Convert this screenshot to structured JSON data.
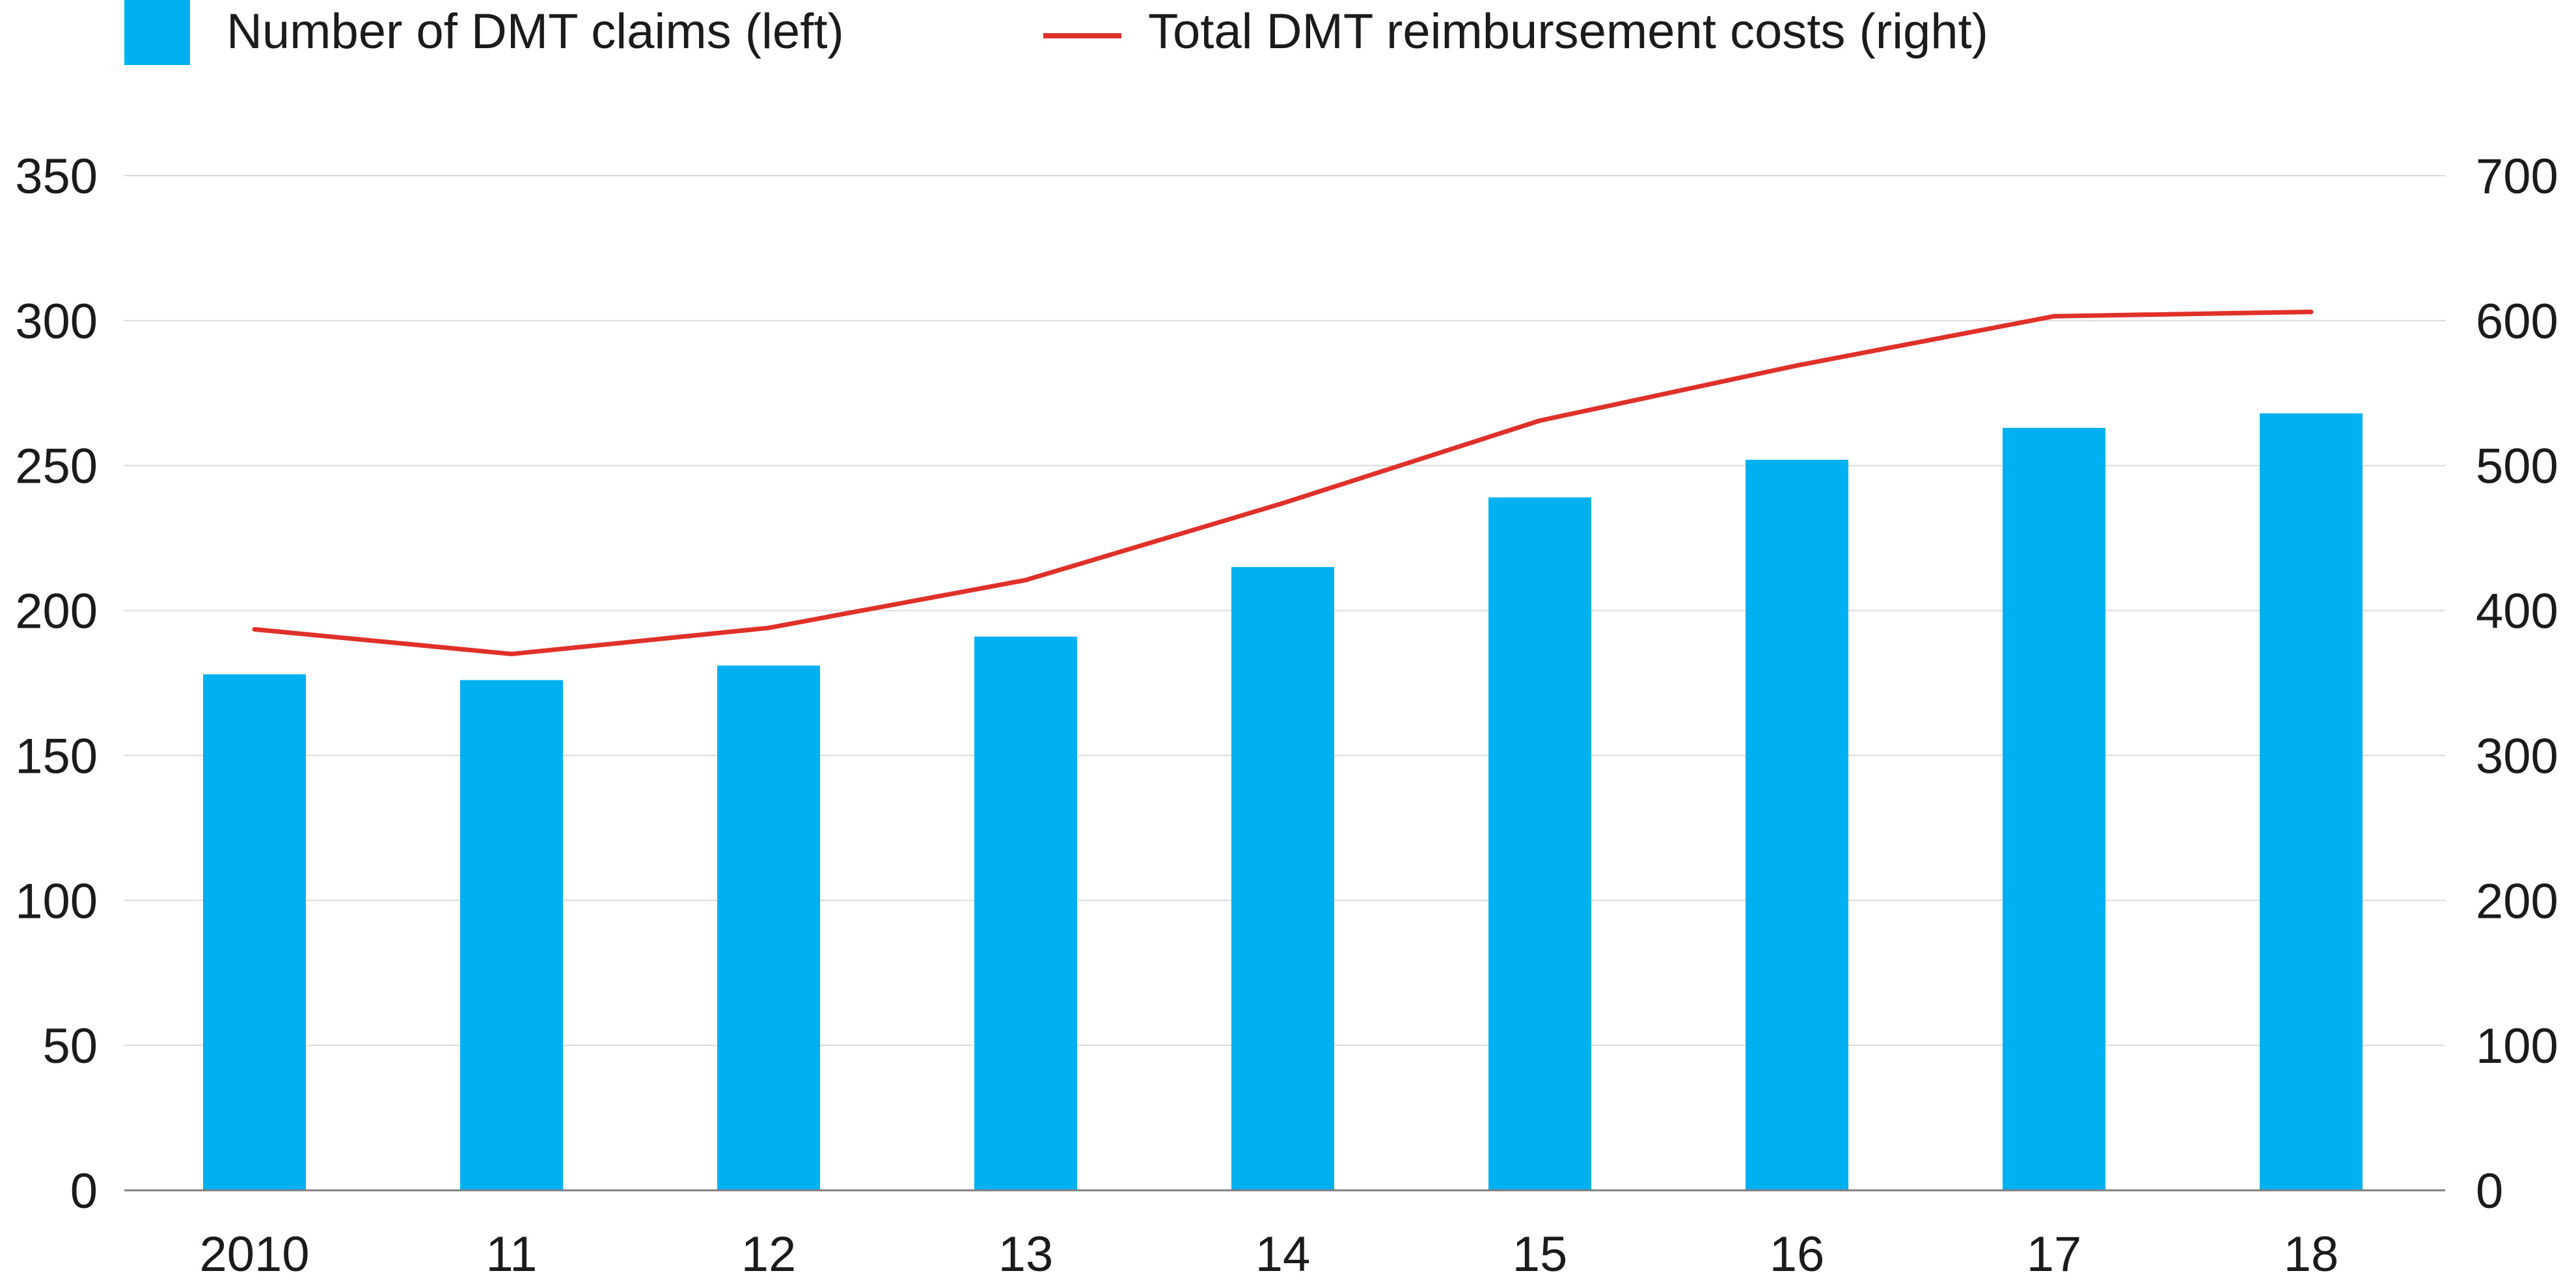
{
  "chart_data": {
    "type": "bar",
    "categories": [
      "2010",
      "11",
      "12",
      "13",
      "14",
      "15",
      "16",
      "17",
      "18"
    ],
    "series": [
      {
        "name": "Number of DMT claims (left)",
        "type": "bar",
        "axis": "left",
        "color": "#00B0F0",
        "values": [
          178,
          176,
          181,
          191,
          215,
          239,
          252,
          263,
          268
        ]
      },
      {
        "name": "Total DMT reimbursement costs (right)",
        "type": "line",
        "axis": "right",
        "color": "#E0302A",
        "values": [
          387,
          370,
          388,
          421,
          474,
          531,
          569,
          603,
          606
        ]
      }
    ],
    "y_left": {
      "ylim": [
        0,
        350
      ],
      "ticks": [
        "0",
        "50",
        "100",
        "150",
        "200",
        "250",
        "300",
        "350"
      ]
    },
    "y_right": {
      "ylim": [
        0,
        700
      ],
      "ticks": [
        "0",
        "100",
        "200",
        "300",
        "400",
        "500",
        "600",
        "700"
      ]
    },
    "grid": true,
    "legend_position": "top-left",
    "colors": {
      "grid": "#DADADA",
      "axis": "#7F7F7F",
      "text": "#1B1B1B"
    }
  }
}
